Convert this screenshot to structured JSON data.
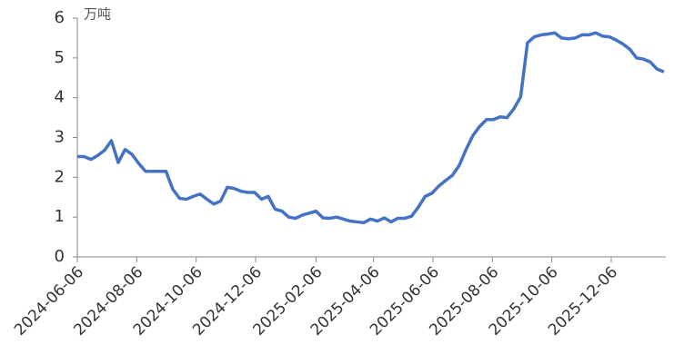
{
  "chart_data": {
    "type": "line",
    "y_label": "万吨",
    "x": [
      "2024-06-06",
      "2024-06-13",
      "2024-06-20",
      "2024-06-27",
      "2024-07-04",
      "2024-07-11",
      "2024-07-18",
      "2024-07-25",
      "2024-08-01",
      "2024-08-08",
      "2024-08-15",
      "2024-08-22",
      "2024-08-29",
      "2024-09-05",
      "2024-09-12",
      "2024-09-19",
      "2024-09-26",
      "2024-10-03",
      "2024-10-10",
      "2024-10-17",
      "2024-10-24",
      "2024-10-31",
      "2024-11-07",
      "2024-11-14",
      "2024-11-21",
      "2024-11-28",
      "2024-12-05",
      "2024-12-12",
      "2024-12-19",
      "2024-12-26",
      "2025-01-02",
      "2025-01-09",
      "2025-01-16",
      "2025-01-23",
      "2025-01-30",
      "2025-02-06",
      "2025-02-13",
      "2025-02-20",
      "2025-02-27",
      "2025-03-06",
      "2025-03-13",
      "2025-03-20",
      "2025-03-27",
      "2025-04-03",
      "2025-04-10",
      "2025-04-17",
      "2025-04-24",
      "2025-05-01",
      "2025-05-08",
      "2025-05-15",
      "2025-05-22",
      "2025-05-29",
      "2025-06-05",
      "2025-06-12",
      "2025-06-19",
      "2025-06-26",
      "2025-07-03",
      "2025-07-10",
      "2025-07-17",
      "2025-07-24",
      "2025-07-31",
      "2025-08-07",
      "2025-08-14",
      "2025-08-21",
      "2025-08-28",
      "2025-09-04",
      "2025-09-11",
      "2025-09-18",
      "2025-09-25",
      "2025-10-02",
      "2025-10-09",
      "2025-10-16",
      "2025-10-23",
      "2025-10-30",
      "2025-11-06",
      "2025-11-13",
      "2025-11-20",
      "2025-11-27",
      "2025-12-04",
      "2025-12-11",
      "2025-12-18",
      "2025-12-25",
      "2026-01-01",
      "2026-01-08",
      "2026-01-15",
      "2026-01-22",
      "2026-01-29"
    ],
    "series": [
      {
        "color": "#4472c4",
        "values": [
          2.52,
          2.52,
          2.45,
          2.55,
          2.68,
          2.92,
          2.37,
          2.7,
          2.58,
          2.35,
          2.15,
          2.15,
          2.15,
          2.15,
          1.7,
          1.47,
          1.45,
          1.52,
          1.58,
          1.45,
          1.33,
          1.4,
          1.75,
          1.72,
          1.65,
          1.62,
          1.62,
          1.45,
          1.52,
          1.2,
          1.15,
          1.0,
          0.97,
          1.05,
          1.1,
          1.15,
          0.98,
          0.97,
          1.0,
          0.95,
          0.9,
          0.88,
          0.86,
          0.95,
          0.9,
          0.98,
          0.88,
          0.97,
          0.97,
          1.02,
          1.25,
          1.52,
          1.6,
          1.78,
          1.92,
          2.05,
          2.3,
          2.7,
          3.05,
          3.28,
          3.45,
          3.45,
          3.52,
          3.5,
          3.72,
          4.02,
          5.38,
          5.53,
          5.58,
          5.6,
          5.63,
          5.5,
          5.48,
          5.5,
          5.58,
          5.58,
          5.63,
          5.55,
          5.53,
          5.45,
          5.35,
          5.22,
          5.0,
          4.97,
          4.9,
          4.72,
          4.65
        ]
      }
    ],
    "xlim": [
      "2024-06-06",
      "2026-01-31"
    ],
    "xticks": [
      "2024-06-06",
      "2024-08-06",
      "2024-10-06",
      "2024-12-06",
      "2025-02-06",
      "2025-04-06",
      "2025-06-06",
      "2025-08-06",
      "2025-10-06",
      "2025-12-06"
    ],
    "ylim": [
      0,
      6
    ],
    "yticks": [
      0,
      1,
      2,
      3,
      4,
      5,
      6
    ],
    "grid": false
  }
}
